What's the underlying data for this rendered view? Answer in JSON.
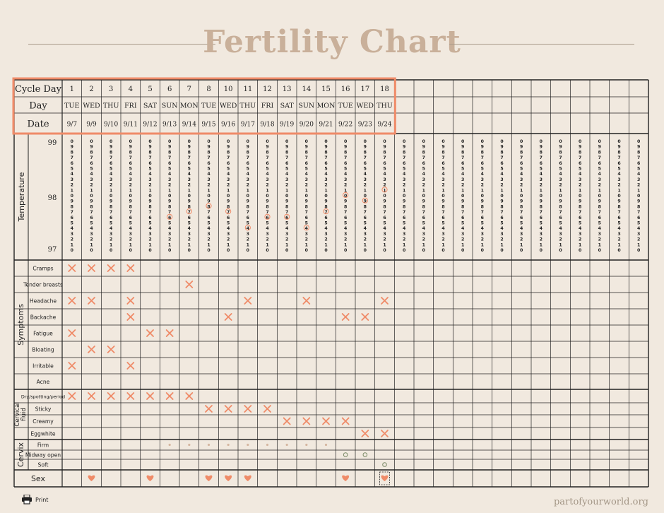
{
  "title": "Fertility Chart",
  "header": {
    "cycle_day_label": "Cycle Day",
    "day_label": "Day",
    "date_label": "Date",
    "cycle_days": [
      "1",
      "2",
      "3",
      "4",
      "5",
      "6",
      "7",
      "8",
      "10",
      "11",
      "12",
      "13",
      "14",
      "15",
      "16",
      "17",
      "18"
    ],
    "days": [
      "TUE",
      "WED",
      "THU",
      "FRI",
      "SAT",
      "SUN",
      "MON",
      "TUE",
      "WED",
      "THU",
      "FRI",
      "SAT",
      "SUN",
      "MON",
      "TUE",
      "WED",
      "THU"
    ],
    "dates": [
      "9/7",
      "9/9",
      "9/10",
      "9/11",
      "9/12",
      "9/13",
      "9/14",
      "9/15",
      "9/16",
      "9/17",
      "9/18",
      "9/19",
      "9/20",
      "9/21",
      "9/22",
      "9/23",
      "9/24"
    ]
  },
  "temperature": {
    "section_label": "Temperature",
    "axis_labels": [
      "99",
      "98",
      "97"
    ],
    "digit_column": [
      "0",
      "9",
      "8",
      "7",
      "6",
      "5",
      "4",
      "3",
      "2",
      "1",
      "0",
      "9",
      "8",
      "7",
      "6",
      "5",
      "4",
      "3",
      "2",
      "1",
      "0"
    ],
    "readings": [
      null,
      null,
      null,
      null,
      null,
      97.6,
      97.7,
      97.8,
      97.7,
      97.4,
      97.6,
      97.6,
      97.4,
      97.7,
      98.0,
      97.9,
      98.1
    ]
  },
  "symptoms": {
    "section_label": "Symptoms",
    "rows": [
      {
        "label": "Cramps",
        "marks": [
          1,
          2,
          3,
          4
        ]
      },
      {
        "label": "Tender breasts",
        "marks": [
          7
        ]
      },
      {
        "label": "Headache",
        "marks": [
          1,
          2,
          4,
          10,
          13,
          17
        ]
      },
      {
        "label": "Backache",
        "marks": [
          4,
          9,
          15,
          16
        ]
      },
      {
        "label": "Fatigue",
        "marks": [
          1,
          5,
          6
        ]
      },
      {
        "label": "Bloating",
        "marks": [
          2,
          3
        ]
      },
      {
        "label": "Irritable",
        "marks": [
          1,
          4
        ]
      },
      {
        "label": "Acne",
        "marks": []
      }
    ]
  },
  "cervical_fluid": {
    "section_label": "Cervical fluid",
    "rows": [
      {
        "label": "Dry/spotting/period",
        "marks": [
          1,
          2,
          3,
          4,
          5,
          6,
          7
        ]
      },
      {
        "label": "Sticky",
        "marks": [
          8,
          9,
          10,
          11
        ]
      },
      {
        "label": "Creamy",
        "marks": [
          12,
          13,
          14,
          15
        ]
      },
      {
        "label": "Eggwhite",
        "marks": [
          16,
          17
        ]
      }
    ]
  },
  "cervix": {
    "section_label": "Cervix",
    "rows": [
      {
        "label": "Firm",
        "marks": [
          6,
          7,
          8,
          9,
          10,
          11,
          12,
          13,
          14
        ]
      },
      {
        "label": "Midway open",
        "marks": [
          15,
          16
        ]
      },
      {
        "label": "Soft",
        "marks": [
          17
        ]
      }
    ]
  },
  "sex": {
    "label": "Sex",
    "marks": [
      2,
      5,
      8,
      9,
      10,
      15,
      17
    ]
  },
  "footer": {
    "print_label": "Print",
    "brand": "partofyourworld.org"
  },
  "colors": {
    "accent": "#ef8b68",
    "grid": "#222222",
    "title": "#c9b09a",
    "background": "#f1e9df"
  }
}
